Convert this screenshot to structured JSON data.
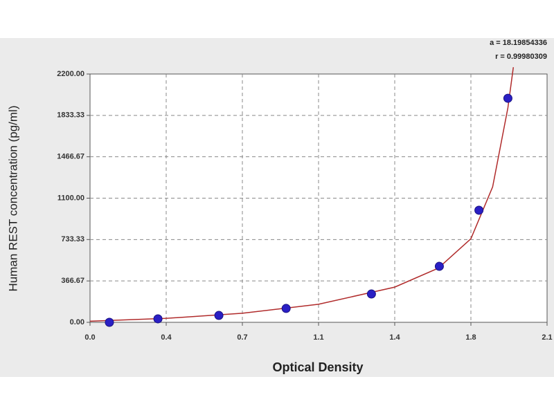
{
  "chart_data": {
    "type": "scatter",
    "x_label": "Optical Density",
    "y_label": "Human REST concentration (pg/ml)",
    "annotations": [
      "a = 18.19854336",
      "r = 0.99980309"
    ],
    "x": [
      0.089,
      0.312,
      0.592,
      0.901,
      1.293,
      1.605,
      1.787,
      1.92
    ],
    "values": [
      0,
      31,
      61,
      123,
      251,
      496,
      993,
      1985
    ],
    "color": "#2a1fc4",
    "fit": {
      "color": "#b02a2a",
      "x": [
        0,
        0.35,
        0.7,
        1.05,
        1.4,
        1.6,
        1.75,
        1.85,
        1.92,
        1.945
      ],
      "values": [
        10,
        35,
        80,
        160,
        312,
        480,
        740,
        1200,
        1900,
        2260
      ]
    },
    "xlim": [
      0,
      2.1
    ],
    "xticks": [
      {
        "value": 0,
        "label": "0.0"
      },
      {
        "value": 0.35,
        "label": "0.4"
      },
      0.7,
      {
        "value": 1.05,
        "label": "1.1"
      },
      1.4,
      {
        "value": 1.75,
        "label": "1.8"
      },
      2.1
    ],
    "ylim": [
      0,
      2200
    ],
    "yticks": [
      {
        "value": 0,
        "label": "0.00"
      },
      366.67,
      733.33,
      {
        "value": 1100,
        "label": "1100.00"
      },
      1466.67,
      1833.33,
      {
        "value": 2200,
        "label": "2200.00"
      }
    ],
    "grid": true
  }
}
